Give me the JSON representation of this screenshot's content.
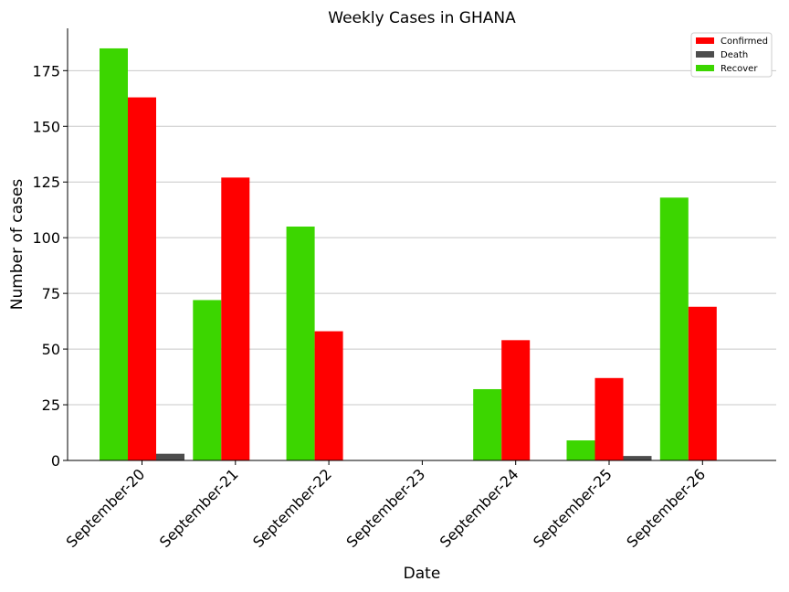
{
  "chart_data": {
    "type": "bar",
    "title": "Weekly Cases in GHANA",
    "xlabel": "Date",
    "ylabel": "Number of cases",
    "categories": [
      "September-20",
      "September-21",
      "September-22",
      "September-23",
      "September-24",
      "September-25",
      "September-26"
    ],
    "series": [
      {
        "name": "Recover",
        "color": "#3cd600",
        "values": [
          185,
          72,
          105,
          0,
          32,
          9,
          118
        ]
      },
      {
        "name": "Confirmed",
        "color": "#ff0000",
        "values": [
          163,
          127,
          58,
          0,
          54,
          37,
          69
        ]
      },
      {
        "name": "Death",
        "color": "#4d4d4d",
        "values": [
          3,
          0,
          0,
          0,
          0,
          2,
          0
        ]
      }
    ],
    "legend_order": [
      "Confirmed",
      "Death",
      "Recover"
    ],
    "legend_position": "top-right",
    "ylim": [
      0,
      194
    ],
    "yticks": [
      0,
      25,
      50,
      75,
      100,
      125,
      150,
      175
    ],
    "grid": "horizontal"
  }
}
